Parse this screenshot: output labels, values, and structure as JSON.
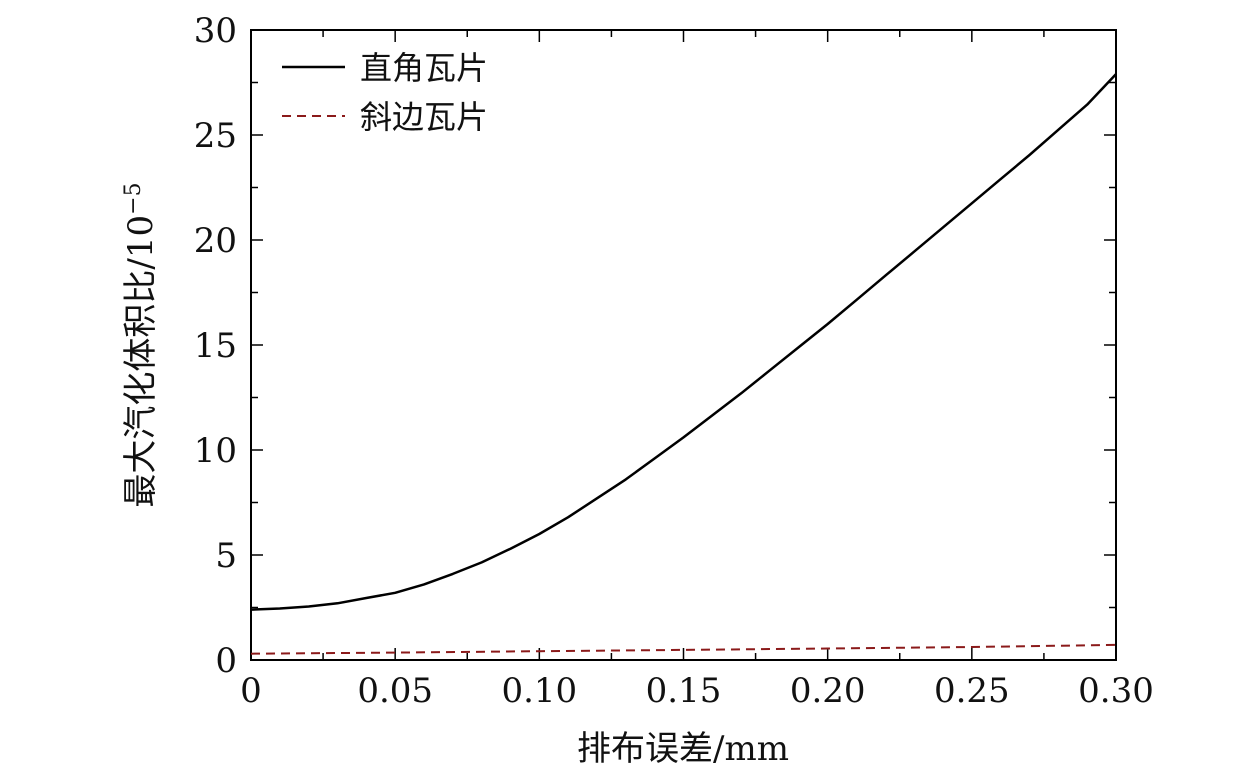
{
  "chart_data": {
    "type": "line",
    "xlabel": "排布误差/mm",
    "ylabel": "最大汽化体积比/10",
    "ylabel_exponent": "−5",
    "xlim": [
      0,
      0.3
    ],
    "ylim": [
      0,
      30
    ],
    "x_ticks": [
      "0",
      "0.05",
      "0.10",
      "0.15",
      "0.20",
      "0.25",
      "0.30"
    ],
    "y_ticks": [
      "0",
      "5",
      "10",
      "15",
      "20",
      "25",
      "30"
    ],
    "grid": false,
    "legend_position": "top-left",
    "series": [
      {
        "name": "直角瓦片",
        "style": "solid",
        "color": "#000000",
        "x": [
          0,
          0.01,
          0.02,
          0.03,
          0.04,
          0.05,
          0.06,
          0.07,
          0.08,
          0.09,
          0.1,
          0.11,
          0.12,
          0.13,
          0.14,
          0.15,
          0.16,
          0.17,
          0.18,
          0.19,
          0.2,
          0.21,
          0.22,
          0.23,
          0.24,
          0.25,
          0.26,
          0.27,
          0.28,
          0.29,
          0.3
        ],
        "y": [
          2.4,
          2.45,
          2.55,
          2.7,
          2.95,
          3.2,
          3.6,
          4.1,
          4.65,
          5.3,
          6.0,
          6.8,
          7.7,
          8.6,
          9.6,
          10.6,
          11.65,
          12.7,
          13.8,
          14.9,
          16.0,
          17.15,
          18.3,
          19.45,
          20.6,
          21.75,
          22.9,
          24.05,
          25.25,
          26.45,
          27.9
        ]
      },
      {
        "name": "斜边瓦片",
        "style": "dashed",
        "color": "#8b1a1a",
        "x": [
          0,
          0.05,
          0.1,
          0.15,
          0.2,
          0.25,
          0.3
        ],
        "y": [
          0.3,
          0.35,
          0.42,
          0.48,
          0.55,
          0.62,
          0.72
        ]
      }
    ]
  }
}
